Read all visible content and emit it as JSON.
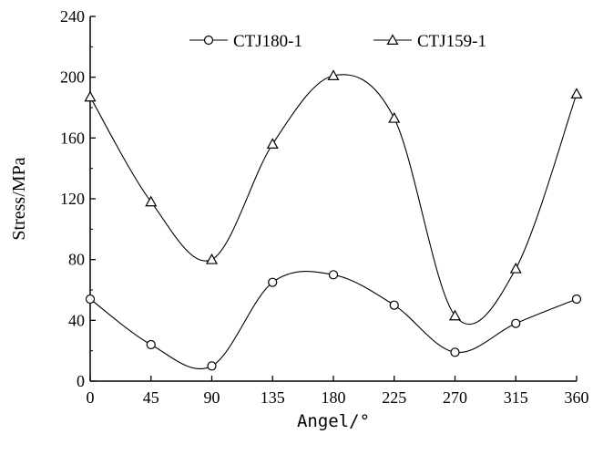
{
  "chart_data": {
    "type": "line",
    "xlabel": "Angel/°",
    "ylabel": "Stress/MPa",
    "xlim": [
      0,
      360
    ],
    "ylim": [
      0,
      240
    ],
    "x_ticks": [
      "0",
      "45",
      "90",
      "135",
      "180",
      "225",
      "270",
      "315",
      "360"
    ],
    "y_ticks": [
      "0",
      "40",
      "80",
      "120",
      "160",
      "200",
      "240"
    ],
    "x": [
      0,
      45,
      90,
      135,
      180,
      225,
      270,
      315,
      360
    ],
    "grid": false,
    "legend_position": "top",
    "series": [
      {
        "name": "CTJ180-1",
        "marker": "circle",
        "values": [
          54,
          24,
          10,
          65,
          70,
          50,
          19,
          38,
          54
        ]
      },
      {
        "name": "CTJ159-1",
        "marker": "triangle",
        "values": [
          187,
          118,
          80,
          156,
          201,
          173,
          43,
          74,
          189
        ]
      }
    ]
  }
}
